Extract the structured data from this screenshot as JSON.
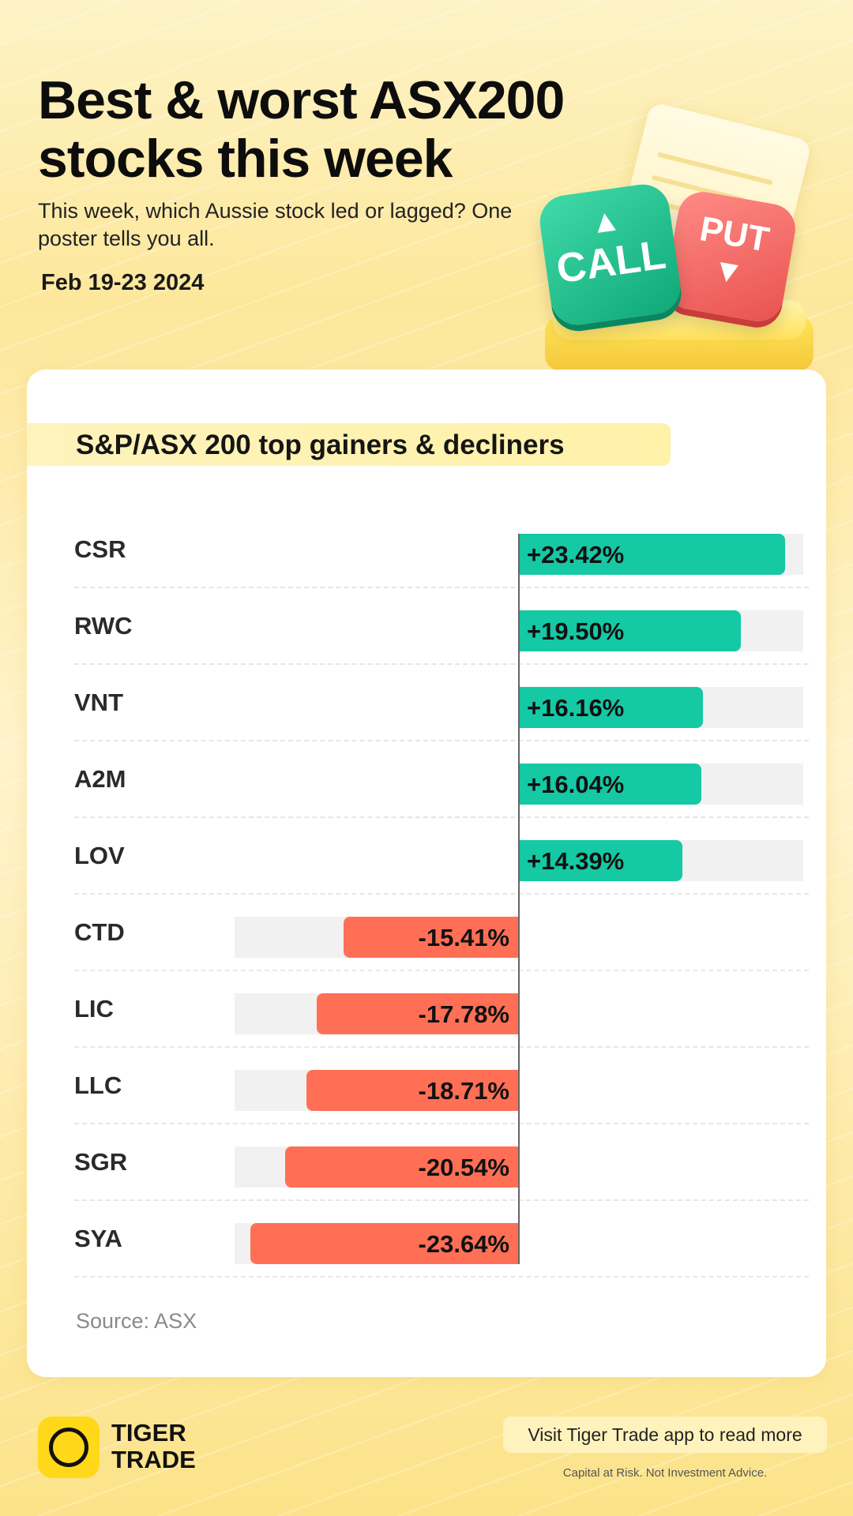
{
  "header": {
    "title": "Best & worst ASX200 stocks this week",
    "subtitle": "This week, which Aussie stock led or lagged? One poster tells you all.",
    "date": "Feb 19-23 2024"
  },
  "illustration": {
    "call_label": "CALL",
    "put_label": "PUT"
  },
  "card": {
    "heading": "S&P/ASX 200 top gainers & decliners",
    "source": "Source: ASX"
  },
  "chart_data": {
    "type": "bar",
    "orientation": "horizontal-diverging",
    "title": "S&P/ASX 200 top gainers & decliners",
    "categories": [
      "CSR",
      "RWC",
      "VNT",
      "A2M",
      "LOV",
      "CTD",
      "LIC",
      "LLC",
      "SGR",
      "SYA"
    ],
    "values": [
      23.42,
      19.5,
      16.16,
      16.04,
      14.39,
      -15.41,
      -17.78,
      -18.71,
      -20.54,
      -23.64
    ],
    "labels": [
      "+23.42%",
      "+19.50%",
      "+16.16%",
      "+16.04%",
      "+14.39%",
      "-15.41%",
      "-17.78%",
      "-18.71%",
      "-20.54%",
      "-23.64%"
    ],
    "unit": "%",
    "xlim": [
      -25,
      25
    ],
    "colors": {
      "positive": "#14c9a4",
      "negative": "#ff6f55",
      "track": "#f1f1f1"
    }
  },
  "footer": {
    "brand_line1": "TIGER",
    "brand_line2": "TRADE",
    "cta": "Visit Tiger Trade app to read more",
    "disclaimer": "Capital at Risk. Not Investment Advice."
  }
}
